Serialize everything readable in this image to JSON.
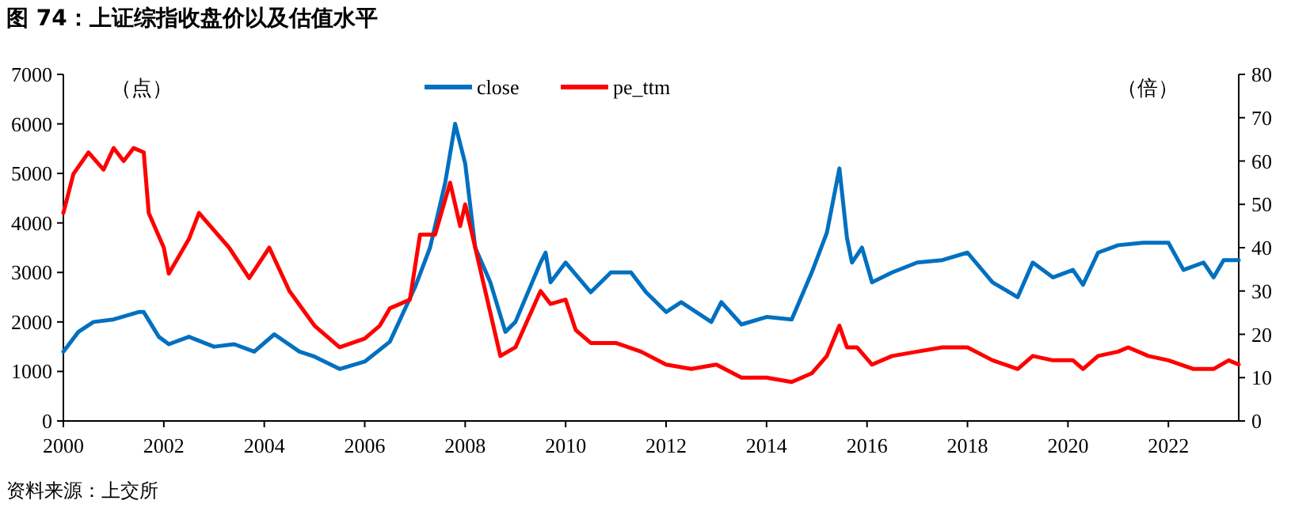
{
  "chart_data": {
    "type": "line",
    "title": "图 74：上证综指收盘价以及估值水平",
    "ylabel": "（点）",
    "y2label": "（倍）",
    "annotations": [
      "资料来源：上交所"
    ],
    "xlim": [
      2000,
      2023.4
    ],
    "xticks": [
      2000,
      2002,
      2004,
      2006,
      2008,
      2010,
      2012,
      2014,
      2016,
      2018,
      2020,
      2022
    ],
    "ylim": [
      0,
      7000
    ],
    "yticks": [
      0,
      1000,
      2000,
      3000,
      4000,
      5000,
      6000,
      7000
    ],
    "y2lim": [
      0,
      80
    ],
    "y2ticks": [
      0,
      10,
      20,
      30,
      40,
      50,
      60,
      70,
      80
    ],
    "legend": "top",
    "grid": false,
    "marker": "none",
    "line_style": "solid",
    "series": [
      {
        "name": "close",
        "color": "#0070c0",
        "x": [
          2000.0,
          2000.3,
          2000.6,
          2001.0,
          2001.5,
          2001.6,
          2001.9,
          2002.1,
          2002.5,
          2003.0,
          2003.4,
          2003.8,
          2004.2,
          2004.7,
          2005.0,
          2005.5,
          2006.0,
          2006.5,
          2007.0,
          2007.3,
          2007.6,
          2007.8,
          2008.0,
          2008.2,
          2008.5,
          2008.8,
          2009.0,
          2009.5,
          2009.6,
          2009.7,
          2010.0,
          2010.5,
          2010.9,
          2011.3,
          2011.6,
          2012.0,
          2012.3,
          2012.9,
          2013.1,
          2013.5,
          2014.0,
          2014.5,
          2014.9,
          2015.2,
          2015.45,
          2015.6,
          2015.7,
          2015.9,
          2016.1,
          2016.5,
          2017.0,
          2017.5,
          2018.0,
          2018.5,
          2019.0,
          2019.3,
          2019.7,
          2020.1,
          2020.3,
          2020.6,
          2021.0,
          2021.5,
          2022.0,
          2022.3,
          2022.7,
          2022.9,
          2023.1,
          2023.4
        ],
        "values": [
          1400,
          1800,
          2000,
          2050,
          2200,
          2200,
          1700,
          1550,
          1700,
          1500,
          1550,
          1400,
          1750,
          1400,
          1300,
          1050,
          1200,
          1600,
          2700,
          3500,
          4800,
          6000,
          5200,
          3500,
          2800,
          1800,
          2000,
          3200,
          3400,
          2800,
          3200,
          2600,
          3000,
          3000,
          2600,
          2200,
          2400,
          2000,
          2400,
          1950,
          2100,
          2050,
          3000,
          3800,
          5100,
          3700,
          3200,
          3500,
          2800,
          3000,
          3200,
          3250,
          3400,
          2800,
          2500,
          3200,
          2900,
          3050,
          2750,
          3400,
          3550,
          3600,
          3600,
          3050,
          3200,
          2900,
          3250,
          3250
        ]
      },
      {
        "name": "pe_ttm",
        "color": "#ff0000",
        "axis": "y2",
        "x": [
          2000.0,
          2000.2,
          2000.5,
          2000.8,
          2001.0,
          2001.2,
          2001.4,
          2001.6,
          2001.7,
          2002.0,
          2002.1,
          2002.5,
          2002.7,
          2003.0,
          2003.3,
          2003.7,
          2004.1,
          2004.5,
          2005.0,
          2005.5,
          2006.0,
          2006.3,
          2006.5,
          2006.9,
          2007.1,
          2007.4,
          2007.7,
          2007.9,
          2008.0,
          2008.3,
          2008.7,
          2009.0,
          2009.5,
          2009.7,
          2010.0,
          2010.2,
          2010.5,
          2011.0,
          2011.5,
          2012.0,
          2012.5,
          2013.0,
          2013.5,
          2014.0,
          2014.5,
          2014.9,
          2015.2,
          2015.45,
          2015.6,
          2015.8,
          2016.1,
          2016.5,
          2017.0,
          2017.5,
          2018.0,
          2018.5,
          2019.0,
          2019.3,
          2019.7,
          2020.1,
          2020.3,
          2020.6,
          2021.0,
          2021.2,
          2021.6,
          2022.0,
          2022.5,
          2022.9,
          2023.2,
          2023.4
        ],
        "values": [
          48,
          57,
          62,
          58,
          63,
          60,
          63,
          62,
          48,
          40,
          34,
          42,
          48,
          44,
          40,
          33,
          40,
          30,
          22,
          17,
          19,
          22,
          26,
          28,
          43,
          43,
          55,
          45,
          50,
          35,
          15,
          17,
          30,
          27,
          28,
          21,
          18,
          18,
          16,
          13,
          12,
          13,
          10,
          10,
          9,
          11,
          15,
          22,
          17,
          17,
          13,
          15,
          16,
          17,
          17,
          14,
          12,
          15,
          14,
          14,
          12,
          15,
          16,
          17,
          15,
          14,
          12,
          12,
          14,
          13
        ]
      }
    ]
  }
}
